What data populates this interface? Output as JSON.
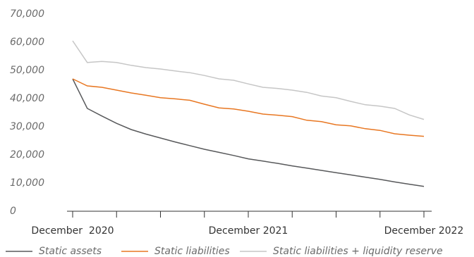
{
  "chart_data": {
    "type": "line",
    "categories": [
      "December  2020",
      null,
      null,
      null,
      null,
      null,
      null,
      null,
      null,
      null,
      null,
      null,
      "December 2021",
      null,
      null,
      null,
      null,
      null,
      null,
      null,
      null,
      null,
      null,
      null,
      "December 2022"
    ],
    "series": [
      {
        "name": "Static assets",
        "color": "#58595b",
        "values": [
          47000,
          36500,
          33800,
          31200,
          29000,
          27400,
          26000,
          24600,
          23300,
          22000,
          20900,
          19800,
          18600,
          17800,
          17000,
          16100,
          15300,
          14500,
          13700,
          12900,
          12100,
          11300,
          10400,
          9600,
          8800
        ]
      },
      {
        "name": "Static liabilities",
        "color": "#e87722",
        "values": [
          47000,
          44500,
          44000,
          43000,
          42000,
          41200,
          40300,
          39900,
          39400,
          38000,
          36700,
          36300,
          35500,
          34500,
          34100,
          33600,
          32300,
          31800,
          30700,
          30300,
          29300,
          28700,
          27500,
          27000,
          26600
        ]
      },
      {
        "name": "Static liabilities + liquidity reserve",
        "color": "#c6c6c6",
        "values": [
          60500,
          52800,
          53200,
          52800,
          51800,
          51000,
          50500,
          49800,
          49200,
          48200,
          47000,
          46500,
          45200,
          44000,
          43600,
          43000,
          42200,
          40900,
          40300,
          39000,
          37800,
          37300,
          36500,
          34200,
          32600
        ]
      }
    ],
    "ylim": [
      0,
      70000
    ],
    "yticks": [
      0,
      {
        "value": 10000,
        "label": "10,000"
      },
      {
        "value": 20000,
        "label": "20,000"
      },
      {
        "value": 30000,
        "label": "30,000"
      },
      {
        "value": 40000,
        "label": "40,000"
      },
      {
        "value": 50000,
        "label": "50,000"
      },
      {
        "value": 60000,
        "label": "60,000"
      },
      {
        "value": 70000,
        "label": "70,000"
      }
    ],
    "grid": false
  }
}
